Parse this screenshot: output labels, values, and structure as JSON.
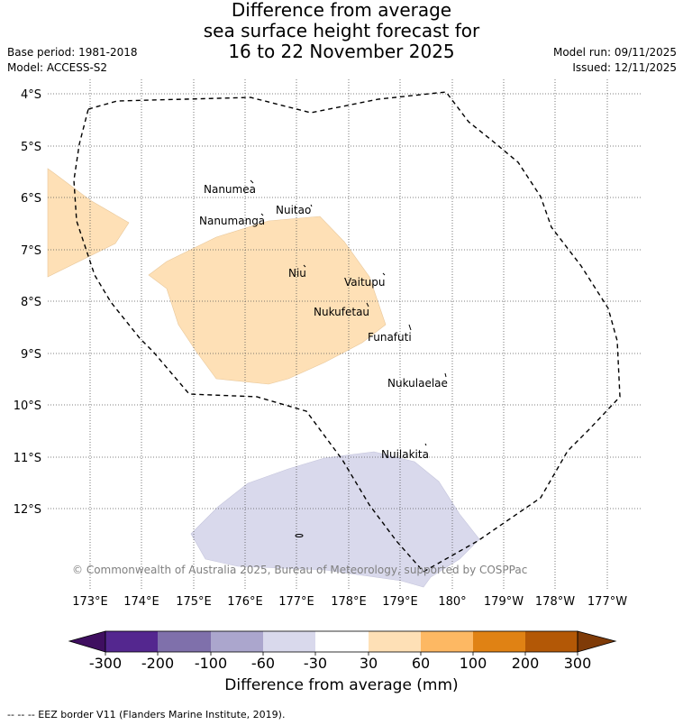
{
  "title_lines": [
    "Difference from average",
    "sea surface height forecast for",
    "16 to 22 November 2025"
  ],
  "header": {
    "base_period": "Base period: 1981-2018",
    "model": "Model: ACCESS-S2",
    "model_run": "Model run: 09/11/2025",
    "issued": "Issued: 12/11/2025"
  },
  "axes": {
    "lat_labels": [
      "4°S",
      "5°S",
      "6°S",
      "7°S",
      "8°S",
      "9°S",
      "10°S",
      "11°S",
      "12°S"
    ],
    "lon_labels": [
      "173°E",
      "174°E",
      "175°E",
      "176°E",
      "177°E",
      "178°E",
      "179°E",
      "180°",
      "179°W",
      "178°W",
      "177°W"
    ]
  },
  "islands": [
    "Nanumea",
    "Nuitao",
    "Nanumanga",
    "Niu",
    "Vaitupu",
    "Nukufetau",
    "Funafuti",
    "Nukulaelae",
    "Nuilakita"
  ],
  "copyright": "© Commonwealth of Australia 2025, Bureau of Meteorology, supported by COSPPac",
  "colorbar": {
    "title": "Difference from average (mm)",
    "tick_labels": [
      "-300",
      "-200",
      "-100",
      "-60",
      "-30",
      "30",
      "60",
      "100",
      "200",
      "300"
    ],
    "colors": [
      "#3f0f60",
      "#54278f",
      "#7f70ab",
      "#aba6cd",
      "#d9d9ec",
      "#ffffff",
      "#fee0b6",
      "#fdb863",
      "#e08214",
      "#b35806",
      "#7f3b08"
    ]
  },
  "footnote": "--  --  -- EEZ border V11 (Flanders Marine Institute, 2019)."
}
